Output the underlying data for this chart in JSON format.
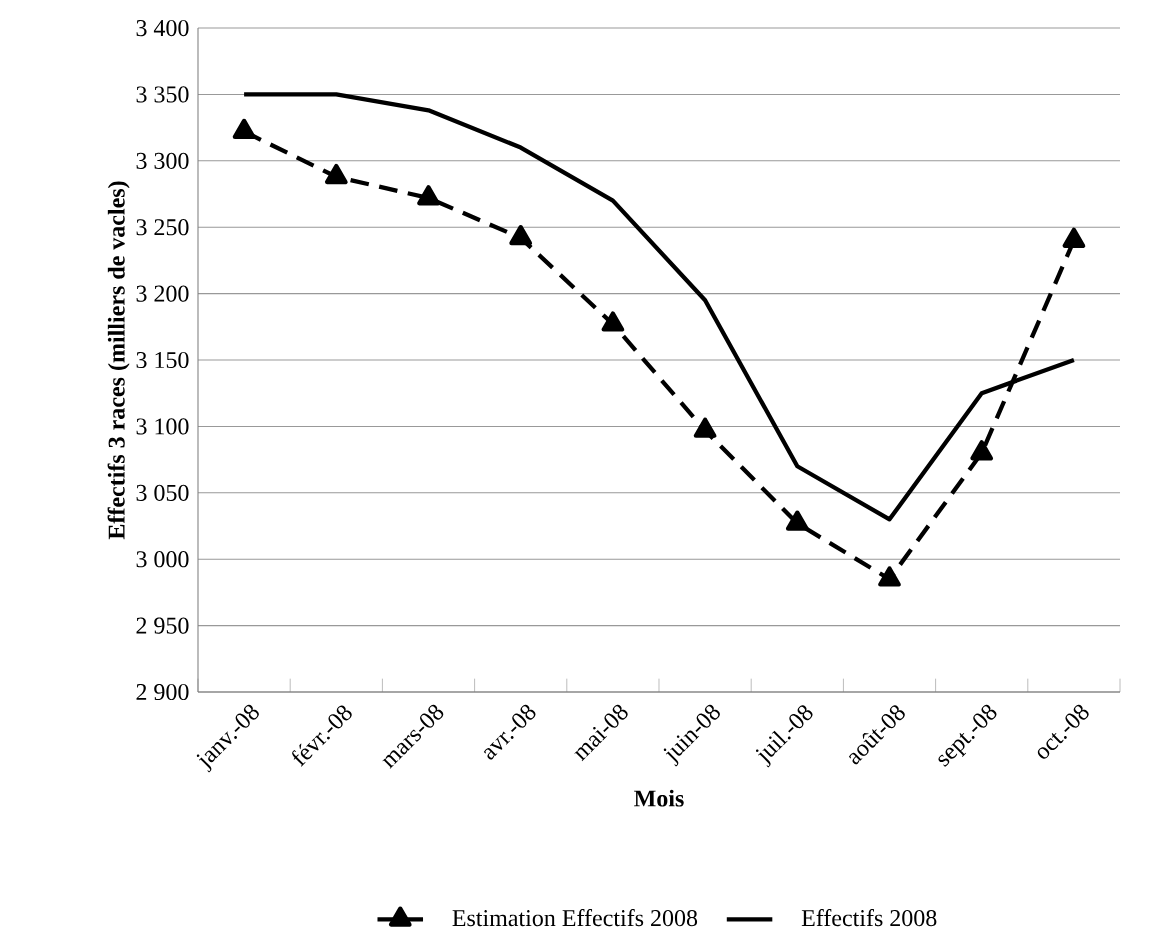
{
  "chart_data": {
    "type": "line",
    "xlabel": "Mois",
    "ylabel": "Effectifs 3 races  (milliers de vacles)",
    "categories": [
      "janv.-08",
      "févr.-08",
      "mars-08",
      "avr.-08",
      "mai-08",
      "juin-08",
      "juil.-08",
      "août-08",
      "sept.-08",
      "oct.-08"
    ],
    "series": [
      {
        "name": "Estimation Effectifs 2008",
        "color": "#000000",
        "marker": "triangle",
        "line_style": "dashed",
        "values": [
          3322,
          3288,
          3272,
          3242,
          3177,
          3097,
          3027,
          2985,
          3080,
          3240
        ]
      },
      {
        "name": "Effectifs 2008",
        "color": "#000000",
        "marker": "none",
        "line_style": "solid",
        "values": [
          3350,
          3350,
          3338,
          3310,
          3270,
          3195,
          3070,
          3030,
          3125,
          3150
        ]
      }
    ],
    "ylim": [
      2900,
      3400
    ],
    "yticks": [
      {
        "value": 2900,
        "label": "2 900"
      },
      {
        "value": 2950,
        "label": "2 950"
      },
      {
        "value": 3000,
        "label": "3 000"
      },
      {
        "value": 3050,
        "label": "3 050"
      },
      {
        "value": 3100,
        "label": "3 100"
      },
      {
        "value": 3150,
        "label": "3 150"
      },
      {
        "value": 3200,
        "label": "3 200"
      },
      {
        "value": 3250,
        "label": "3 250"
      },
      {
        "value": 3300,
        "label": "3 300"
      },
      {
        "value": 3350,
        "label": "3 350"
      },
      {
        "value": 3400,
        "label": "3 400"
      }
    ],
    "grid": "y",
    "legend": "bottom"
  }
}
